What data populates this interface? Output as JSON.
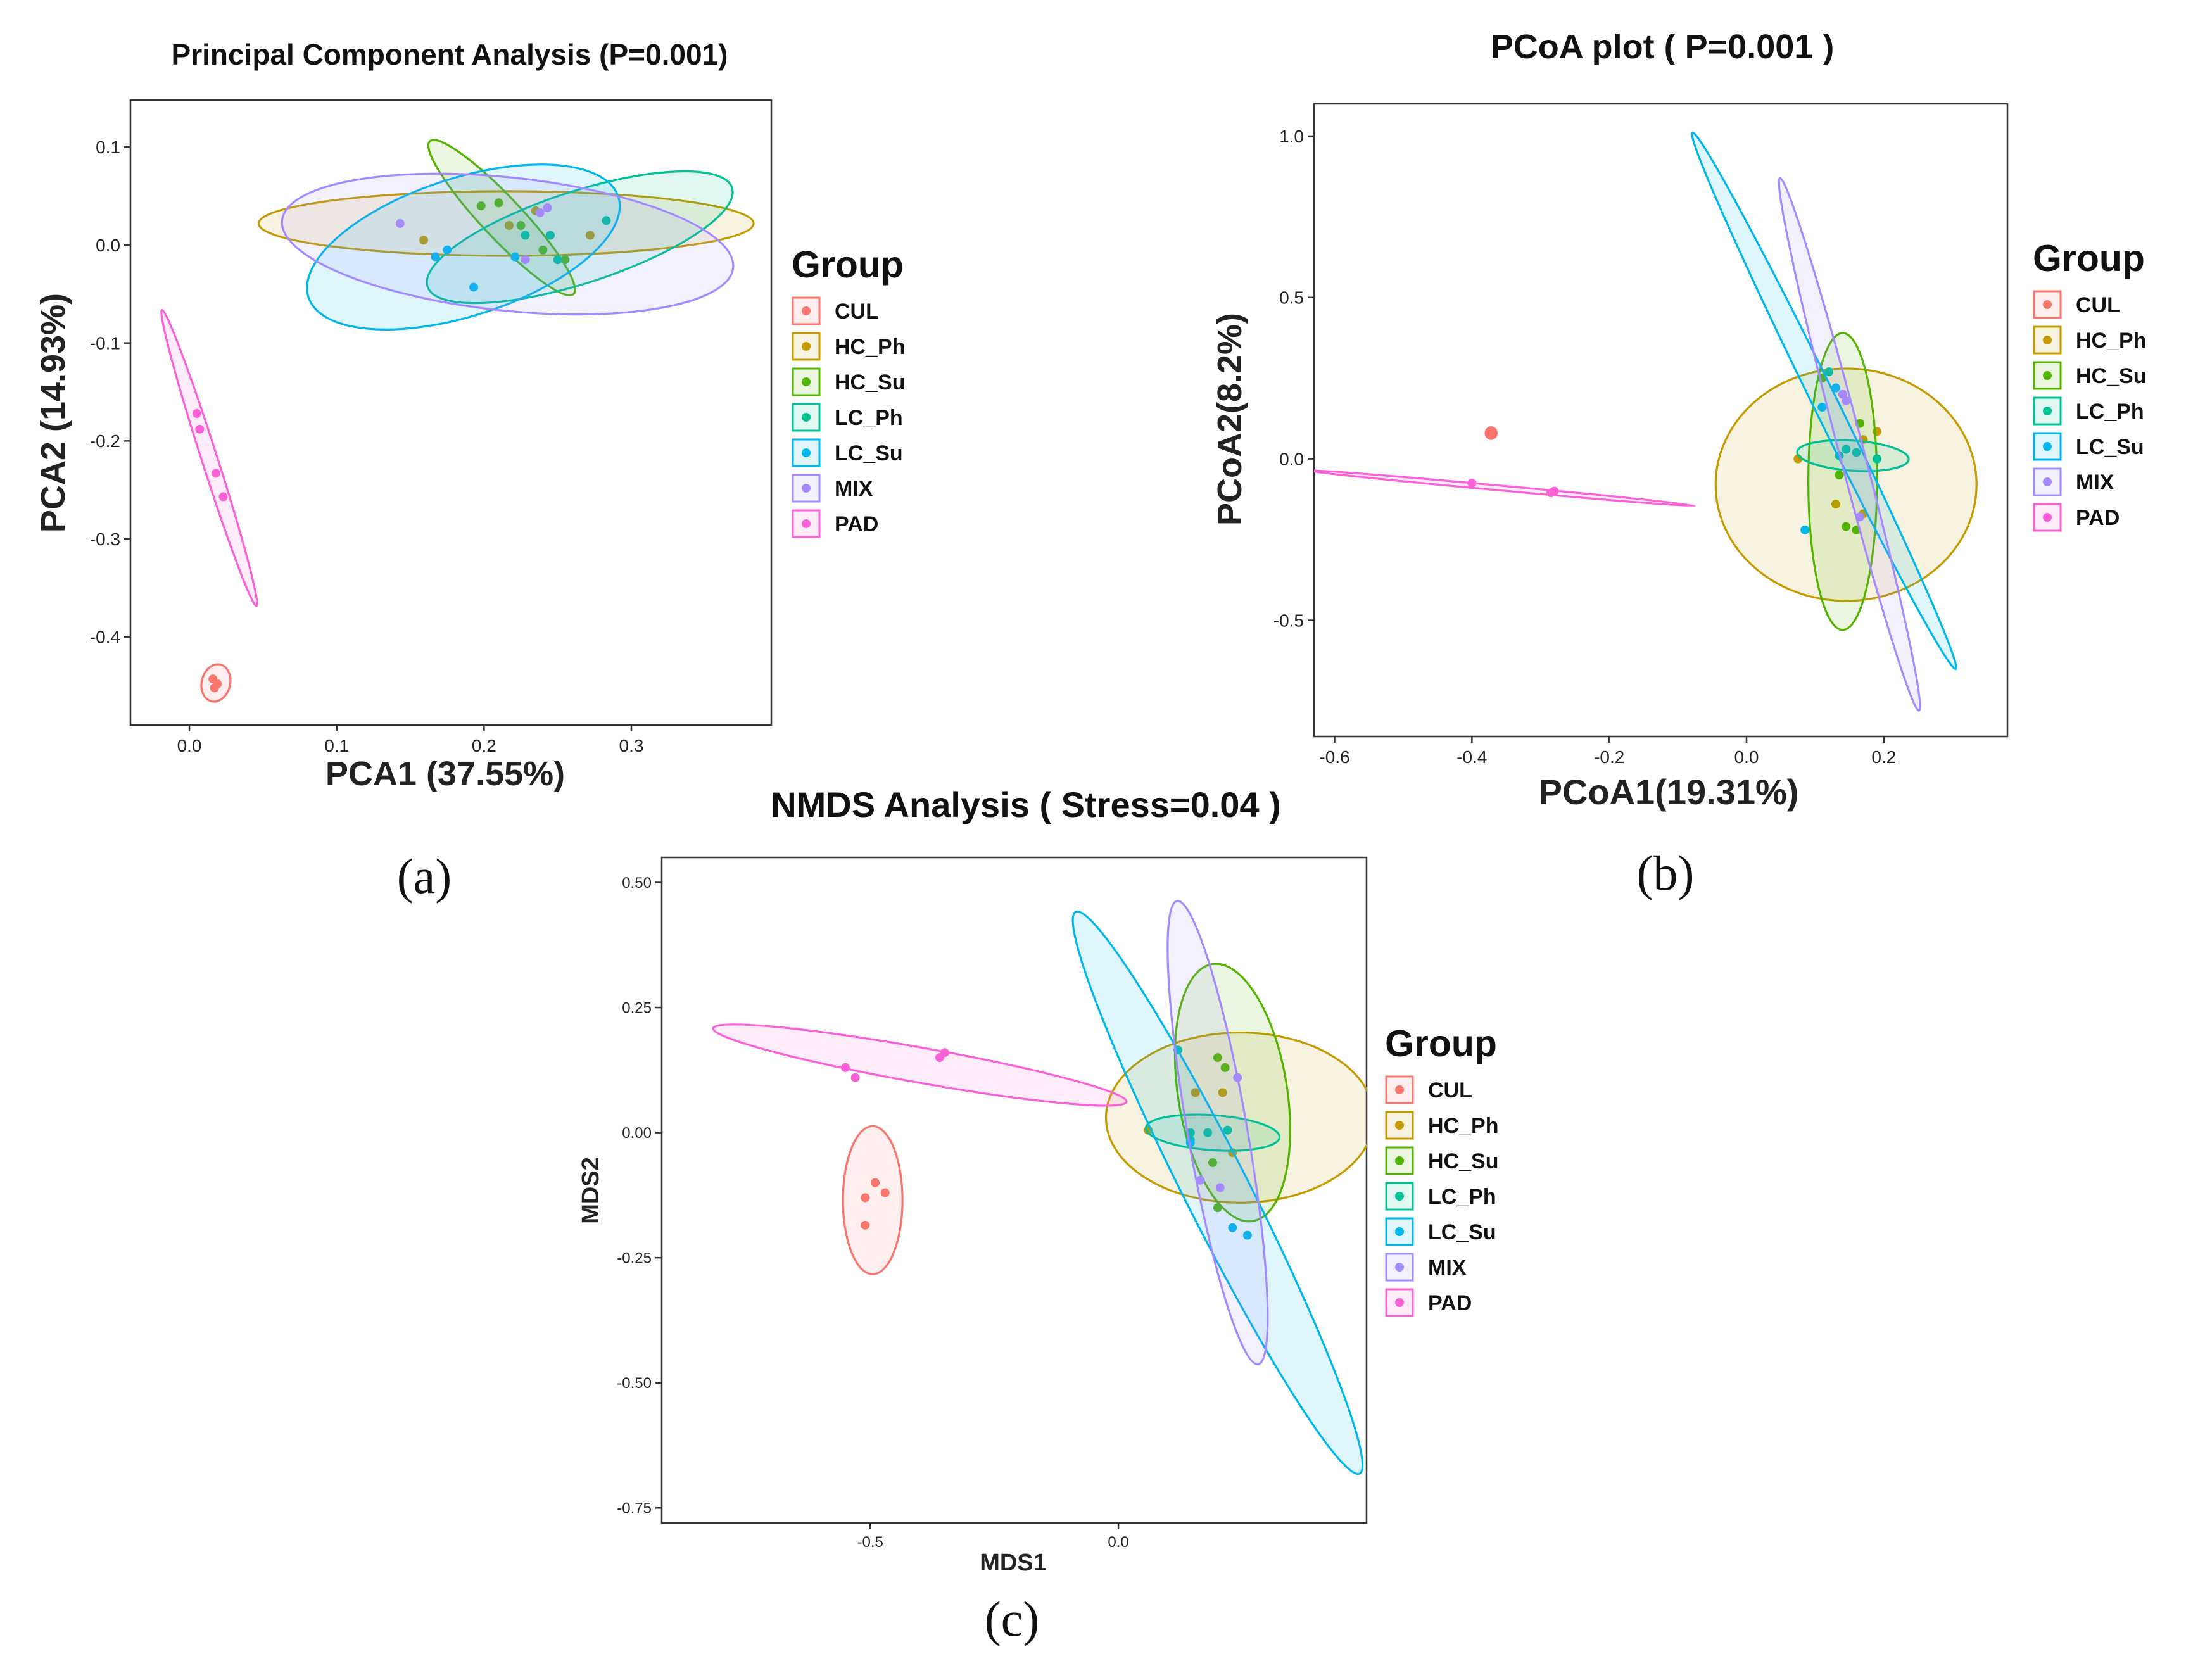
{
  "group_colors": {
    "CUL": "#F8766D",
    "HC_Ph": "#C49A00",
    "HC_Su": "#53B400",
    "LC_Ph": "#00C094",
    "LC_Su": "#00B6EB",
    "MIX": "#A58AFF",
    "PAD": "#FB61D7"
  },
  "chart_data": [
    {
      "id": "a",
      "type": "scatter",
      "title": "Principal Component Analysis (P=0.001)",
      "xlabel": "PCA1 (37.55%)",
      "ylabel": "PCA2 (14.93%)",
      "caption": "(a)",
      "xlim": [
        -0.04,
        0.395
      ],
      "ylim": [
        -0.49,
        0.148
      ],
      "xticks": [
        0.0,
        0.1,
        0.2,
        0.3
      ],
      "xtick_labels": [
        "0.0",
        "0.1",
        "0.2",
        "0.3"
      ],
      "yticks": [
        0.1,
        0.0,
        -0.1,
        -0.2,
        -0.3,
        -0.4
      ],
      "ytick_labels": [
        "0.1",
        "0.0",
        "-0.1",
        "-0.2",
        "-0.3",
        "-0.4"
      ],
      "grid": false,
      "legend": {
        "title": "Group",
        "position": "right"
      },
      "series": [
        {
          "name": "CUL",
          "points": [
            [
              0.016,
              -0.443
            ],
            [
              0.019,
              -0.448
            ],
            [
              0.017,
              -0.452
            ]
          ],
          "ellipse": {
            "cx": 0.018,
            "cy": -0.447,
            "rx": 0.01,
            "ry": 0.018,
            "angle": -20
          }
        },
        {
          "name": "HC_Ph",
          "points": [
            [
              0.159,
              0.005
            ],
            [
              0.217,
              0.02
            ],
            [
              0.272,
              0.01
            ],
            [
              0.235,
              0.035
            ]
          ],
          "ellipse": {
            "cx": 0.215,
            "cy": 0.022,
            "rx": 0.168,
            "ry": 0.033,
            "angle": 0
          }
        },
        {
          "name": "HC_Su",
          "points": [
            [
              0.198,
              0.04
            ],
            [
              0.21,
              0.043
            ],
            [
              0.225,
              0.02
            ],
            [
              0.24,
              -0.005
            ],
            [
              0.255,
              -0.015
            ]
          ],
          "ellipse": {
            "cx": 0.212,
            "cy": 0.028,
            "rx": 0.092,
            "ry": 0.015,
            "angle": -58
          }
        },
        {
          "name": "LC_Ph",
          "points": [
            [
              0.228,
              0.01
            ],
            [
              0.25,
              -0.015
            ],
            [
              0.283,
              0.025
            ],
            [
              0.245,
              0.01
            ]
          ],
          "ellipse": {
            "cx": 0.265,
            "cy": 0.008,
            "rx": 0.115,
            "ry": 0.042,
            "angle": 26
          }
        },
        {
          "name": "LC_Su",
          "points": [
            [
              0.167,
              -0.012
            ],
            [
              0.175,
              -0.005
            ],
            [
              0.193,
              -0.043
            ],
            [
              0.221,
              -0.012
            ]
          ],
          "ellipse": {
            "cx": 0.186,
            "cy": -0.002,
            "rx": 0.117,
            "ry": 0.063,
            "angle": 26
          }
        },
        {
          "name": "MIX",
          "points": [
            [
              0.143,
              0.022
            ],
            [
              0.238,
              0.033
            ],
            [
              0.243,
              0.038
            ],
            [
              0.228,
              -0.015
            ]
          ],
          "ellipse": {
            "cx": 0.216,
            "cy": 0.001,
            "rx": 0.155,
            "ry": 0.067,
            "angle": -9
          }
        },
        {
          "name": "PAD",
          "points": [
            [
              0.005,
              -0.172
            ],
            [
              0.007,
              -0.188
            ],
            [
              0.018,
              -0.233
            ],
            [
              0.023,
              -0.257
            ]
          ],
          "ellipse": {
            "cx": 0.0135,
            "cy": -0.2175,
            "rx": 0.1545,
            "ry": 0.0054,
            "angle": -78
          }
        }
      ]
    },
    {
      "id": "b",
      "type": "scatter",
      "title": "PCoA plot ( P=0.001 )",
      "xlabel": "PCoA1(19.31%)",
      "ylabel": "PCoA2(8.2%)",
      "caption": "(b)",
      "xlim": [
        -0.63,
        0.38
      ],
      "ylim": [
        -0.86,
        1.1
      ],
      "xticks": [
        -0.6,
        -0.4,
        -0.2,
        0.0,
        0.2
      ],
      "xtick_labels": [
        "-0.6",
        "-0.4",
        "-0.2",
        "0.0",
        "0.2"
      ],
      "yticks": [
        1.0,
        0.5,
        0.0,
        -0.5
      ],
      "ytick_labels": [
        "1.0",
        "0.5",
        "0.0",
        "-0.5"
      ],
      "grid": false,
      "legend": {
        "title": "Group",
        "position": "right"
      },
      "series": [
        {
          "name": "CUL",
          "points": [
            [
              -0.372,
              0.085
            ],
            [
              -0.371,
              0.075
            ],
            [
              -0.373,
              0.08
            ]
          ],
          "ellipse": {
            "cx": -0.372,
            "cy": 0.08,
            "rx": 0.008,
            "ry": 0.018,
            "angle": 0
          }
        },
        {
          "name": "HC_Ph",
          "points": [
            [
              0.075,
              0.0
            ],
            [
              0.13,
              -0.14
            ],
            [
              0.17,
              -0.17
            ],
            [
              0.19,
              0.085
            ],
            [
              0.17,
              0.06
            ]
          ],
          "ellipse": {
            "cx": 0.145,
            "cy": -0.08,
            "rx": 0.19,
            "ry": 0.36,
            "angle": 0
          }
        },
        {
          "name": "HC_Su",
          "points": [
            [
              0.11,
              0.25
            ],
            [
              0.135,
              -0.05
            ],
            [
              0.145,
              -0.21
            ],
            [
              0.16,
              -0.22
            ],
            [
              0.165,
              0.11
            ]
          ],
          "ellipse": {
            "cx": 0.14,
            "cy": -0.07,
            "rx": 0.05,
            "ry": 0.46,
            "angle": 0
          }
        },
        {
          "name": "LC_Ph",
          "points": [
            [
              0.12,
              0.27
            ],
            [
              0.145,
              0.03
            ],
            [
              0.16,
              0.02
            ],
            [
              0.19,
              0.0
            ],
            [
              0.135,
              0.01
            ]
          ],
          "ellipse": {
            "cx": 0.155,
            "cy": 0.01,
            "rx": 0.082,
            "ry": 0.045,
            "angle": -8
          }
        },
        {
          "name": "LC_Su",
          "points": [
            [
              0.085,
              -0.22
            ],
            [
              0.11,
              0.16
            ],
            [
              0.13,
              0.22
            ]
          ],
          "ellipse": {
            "cx": 0.113,
            "cy": 0.18,
            "rx": 0.853,
            "ry": 0.018,
            "angle": -77
          }
        },
        {
          "name": "MIX",
          "points": [
            [
              0.14,
              0.2
            ],
            [
              0.145,
              0.18
            ],
            [
              0.165,
              -0.18
            ]
          ],
          "ellipse": {
            "cx": 0.15,
            "cy": 0.045,
            "rx": 0.831,
            "ry": 0.018,
            "angle": -83
          }
        },
        {
          "name": "PAD",
          "points": [
            [
              -0.4,
              -0.075
            ],
            [
              -0.285,
              -0.105
            ],
            [
              -0.28,
              -0.1
            ]
          ],
          "ellipse": {
            "cx": -0.36,
            "cy": -0.09,
            "rx": 0.29,
            "ry": 0.007,
            "angle": -11
          }
        }
      ]
    },
    {
      "id": "c",
      "type": "scatter",
      "title": "NMDS Analysis ( Stress=0.04 )",
      "xlabel": "MDS1",
      "ylabel": "MDS2",
      "caption": "(c)",
      "xlim": [
        -0.92,
        0.5
      ],
      "ylim": [
        -0.78,
        0.55
      ],
      "xticks": [
        -0.5,
        0.0
      ],
      "xtick_labels": [
        "-0.5",
        "0.0"
      ],
      "yticks": [
        0.5,
        0.25,
        0.0,
        -0.25,
        -0.5,
        -0.75
      ],
      "ytick_labels": [
        "0.50",
        "0.25",
        "0.00",
        "-0.25",
        "-0.50",
        "-0.75"
      ],
      "grid": false,
      "legend": {
        "title": "Group",
        "position": "right"
      },
      "series": [
        {
          "name": "CUL",
          "points": [
            [
              -0.51,
              -0.13
            ],
            [
              -0.49,
              -0.1
            ],
            [
              -0.47,
              -0.12
            ],
            [
              -0.51,
              -0.185
            ]
          ],
          "ellipse": {
            "cx": -0.495,
            "cy": -0.135,
            "rx": 0.06,
            "ry": 0.148,
            "angle": 0
          }
        },
        {
          "name": "HC_Ph",
          "points": [
            [
              0.06,
              0.005
            ],
            [
              0.155,
              0.08
            ],
            [
              0.21,
              0.08
            ],
            [
              0.23,
              -0.04
            ]
          ],
          "ellipse": {
            "cx": 0.245,
            "cy": 0.03,
            "rx": 0.27,
            "ry": 0.17,
            "angle": 0
          }
        },
        {
          "name": "HC_Su",
          "points": [
            [
              0.2,
              0.15
            ],
            [
              0.215,
              0.13
            ],
            [
              0.19,
              -0.06
            ],
            [
              0.2,
              -0.15
            ]
          ],
          "ellipse": {
            "cx": 0.23,
            "cy": 0.08,
            "rx": 0.26,
            "ry": 0.11,
            "angle": -81
          }
        },
        {
          "name": "LC_Ph",
          "points": [
            [
              0.12,
              0.165
            ],
            [
              0.145,
              0.0
            ],
            [
              0.18,
              0.0
            ],
            [
              0.22,
              0.005
            ],
            [
              0.145,
              -0.015
            ]
          ],
          "ellipse": {
            "cx": 0.19,
            "cy": 0.0,
            "rx": 0.135,
            "ry": 0.035,
            "angle": -4
          }
        },
        {
          "name": "LC_Su",
          "points": [
            [
              0.23,
              -0.19
            ],
            [
              0.26,
              -0.205
            ],
            [
              0.145,
              -0.02
            ]
          ],
          "ellipse": {
            "cx": 0.2,
            "cy": -0.12,
            "rx": 0.63,
            "ry": 0.065,
            "angle": -63
          }
        },
        {
          "name": "MIX",
          "points": [
            [
              0.165,
              -0.095
            ],
            [
              0.205,
              -0.11
            ],
            [
              0.24,
              0.11
            ]
          ],
          "ellipse": {
            "cx": 0.2,
            "cy": 0.0,
            "rx": 0.47,
            "ry": 0.06,
            "angle": -80
          }
        },
        {
          "name": "PAD",
          "points": [
            [
              -0.55,
              0.13
            ],
            [
              -0.53,
              0.11
            ],
            [
              -0.36,
              0.15
            ],
            [
              -0.35,
              0.16
            ]
          ],
          "ellipse": {
            "cx": -0.4,
            "cy": 0.135,
            "rx": 0.423,
            "ry": 0.035,
            "angle": -10
          }
        }
      ]
    }
  ]
}
